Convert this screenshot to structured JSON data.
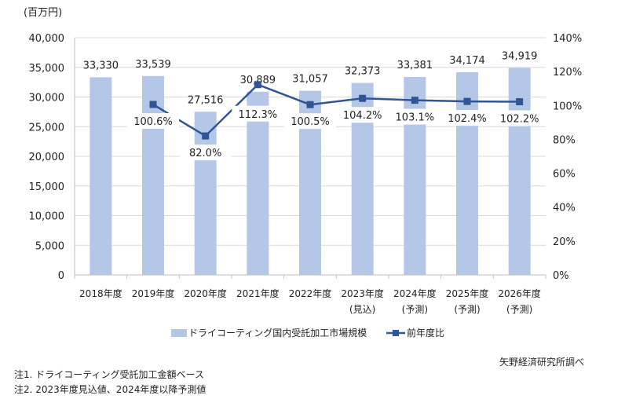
{
  "chart_data": {
    "type": "bar+line",
    "unit_label": "(百万円)",
    "categories": [
      "2018年度",
      "2019年度",
      "2020年度",
      "2021年度",
      "2022年度",
      "2023年度",
      "2024年度",
      "2025年度",
      "2026年度"
    ],
    "category_sublabels": [
      "",
      "",
      "",
      "",
      "",
      "(見込)",
      "(予測)",
      "(予測)",
      "(予測)"
    ],
    "series": [
      {
        "name": "ドライコーティング国内受託加工市場規模",
        "type": "bar",
        "axis": "left",
        "color": "#b4c7e7",
        "values": [
          33330,
          33539,
          27516,
          30889,
          31057,
          32373,
          33381,
          34174,
          34919
        ],
        "labels": [
          "33,330",
          "33,539",
          "27,516",
          "30,889",
          "31,057",
          "32,373",
          "33,381",
          "34,174",
          "34,919"
        ]
      },
      {
        "name": "前年度比",
        "type": "line",
        "axis": "right",
        "color": "#2f5597",
        "values": [
          null,
          100.6,
          82.0,
          112.3,
          100.5,
          104.2,
          103.1,
          102.4,
          102.2
        ],
        "labels": [
          "",
          "100.6%",
          "82.0%",
          "112.3%",
          "100.5%",
          "104.2%",
          "103.1%",
          "102.4%",
          "102.2%"
        ]
      }
    ],
    "ylim_left": [
      0,
      40000
    ],
    "ylim_right": [
      0,
      140
    ],
    "left_ticks": [
      "0",
      "5,000",
      "10,000",
      "15,000",
      "20,000",
      "25,000",
      "30,000",
      "35,000",
      "40,000"
    ],
    "right_ticks": [
      "0%",
      "20%",
      "40%",
      "60%",
      "80%",
      "100%",
      "120%",
      "140%"
    ],
    "grid": true,
    "legend": "bottom"
  },
  "source": "矢野経済研究所調べ",
  "notes": [
    "注1. ドライコーティング受託加工金額ベース",
    "注2. 2023年度見込値、2024年度以降予測値"
  ]
}
